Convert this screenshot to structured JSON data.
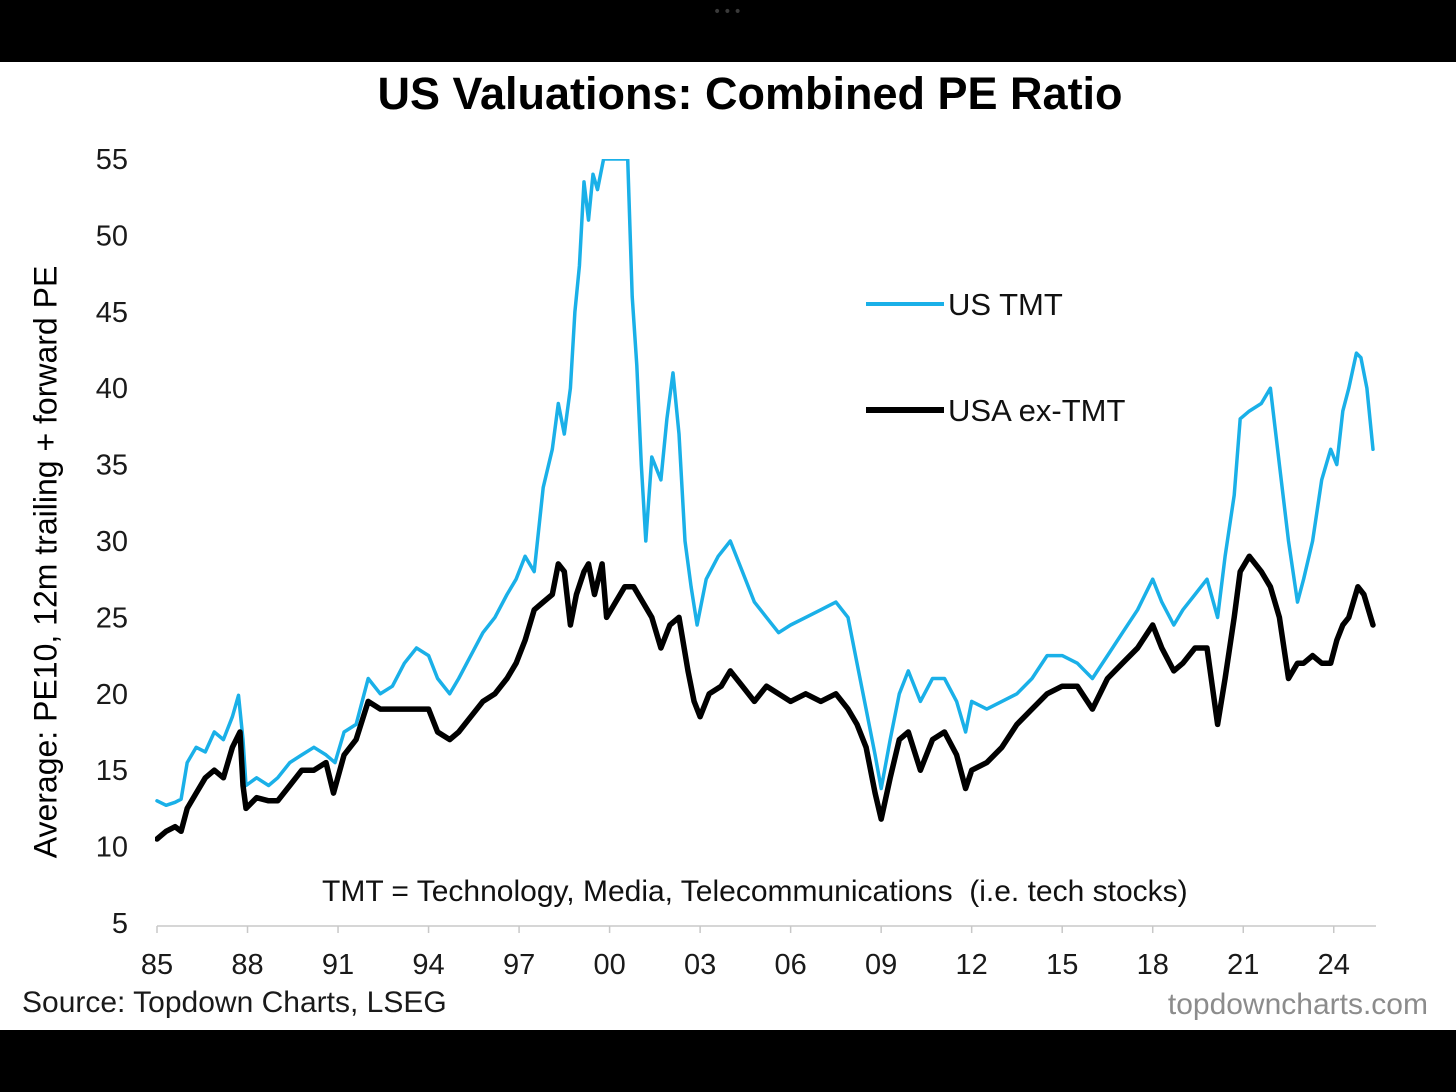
{
  "window": {
    "top_bar_dots": "•••"
  },
  "chart_data": {
    "type": "line",
    "title": "US Valuations: Combined PE Ratio",
    "ylabel": "Average: PE10, 12m trailing + forward PE",
    "xlabel": "",
    "ylim": [
      5,
      55
    ],
    "xlim": [
      1985,
      2025.5
    ],
    "yticks": [
      5,
      10,
      15,
      20,
      25,
      30,
      35,
      40,
      45,
      50,
      55
    ],
    "xticks": [
      {
        "value": 1985,
        "label": "85"
      },
      {
        "value": 1988,
        "label": "88"
      },
      {
        "value": 1991,
        "label": "91"
      },
      {
        "value": 1994,
        "label": "94"
      },
      {
        "value": 1997,
        "label": "97"
      },
      {
        "value": 2000,
        "label": "00"
      },
      {
        "value": 2003,
        "label": "03"
      },
      {
        "value": 2006,
        "label": "06"
      },
      {
        "value": 2009,
        "label": "09"
      },
      {
        "value": 2012,
        "label": "12"
      },
      {
        "value": 2015,
        "label": "15"
      },
      {
        "value": 2018,
        "label": "18"
      },
      {
        "value": 2021,
        "label": "21"
      },
      {
        "value": 2024,
        "label": "24"
      }
    ],
    "legend_position": "upper-right",
    "grid": false,
    "annotation": "TMT = Technology, Media, Telecommunications  (i.e. tech stocks)",
    "series": [
      {
        "name": "US TMT",
        "color": "#1ab0e8",
        "points": [
          [
            1985.0,
            13.0
          ],
          [
            1985.3,
            12.7
          ],
          [
            1985.6,
            12.9
          ],
          [
            1985.8,
            13.1
          ],
          [
            1986.0,
            15.5
          ],
          [
            1986.3,
            16.5
          ],
          [
            1986.6,
            16.2
          ],
          [
            1986.9,
            17.5
          ],
          [
            1987.2,
            17.0
          ],
          [
            1987.5,
            18.5
          ],
          [
            1987.7,
            19.9
          ],
          [
            1987.85,
            17.0
          ],
          [
            1987.95,
            14.0
          ],
          [
            1988.3,
            14.5
          ],
          [
            1988.7,
            14.0
          ],
          [
            1989.0,
            14.5
          ],
          [
            1989.4,
            15.5
          ],
          [
            1989.8,
            16.0
          ],
          [
            1990.2,
            16.5
          ],
          [
            1990.6,
            16.0
          ],
          [
            1990.9,
            15.5
          ],
          [
            1991.2,
            17.5
          ],
          [
            1991.6,
            18.0
          ],
          [
            1992.0,
            21.0
          ],
          [
            1992.4,
            20.0
          ],
          [
            1992.8,
            20.5
          ],
          [
            1993.2,
            22.0
          ],
          [
            1993.6,
            23.0
          ],
          [
            1994.0,
            22.5
          ],
          [
            1994.3,
            21.0
          ],
          [
            1994.7,
            20.0
          ],
          [
            1995.0,
            21.0
          ],
          [
            1995.4,
            22.5
          ],
          [
            1995.8,
            24.0
          ],
          [
            1996.2,
            25.0
          ],
          [
            1996.6,
            26.5
          ],
          [
            1996.9,
            27.5
          ],
          [
            1997.2,
            29.0
          ],
          [
            1997.5,
            28.0
          ],
          [
            1997.8,
            33.5
          ],
          [
            1998.1,
            36.0
          ],
          [
            1998.3,
            39.0
          ],
          [
            1998.5,
            37.0
          ],
          [
            1998.7,
            40.0
          ],
          [
            1998.85,
            45.0
          ],
          [
            1999.0,
            48.0
          ],
          [
            1999.15,
            53.5
          ],
          [
            1999.3,
            51.0
          ],
          [
            1999.45,
            54.0
          ],
          [
            1999.6,
            53.0
          ],
          [
            1999.8,
            55.0
          ],
          [
            2000.0,
            55.0
          ],
          [
            2000.6,
            55.0
          ],
          [
            2000.75,
            46.0
          ],
          [
            2000.9,
            41.5
          ],
          [
            2001.05,
            35.0
          ],
          [
            2001.2,
            30.0
          ],
          [
            2001.4,
            35.5
          ],
          [
            2001.7,
            34.0
          ],
          [
            2001.9,
            38.0
          ],
          [
            2002.1,
            41.0
          ],
          [
            2002.3,
            37.0
          ],
          [
            2002.5,
            30.0
          ],
          [
            2002.7,
            27.0
          ],
          [
            2002.9,
            24.5
          ],
          [
            2003.2,
            27.5
          ],
          [
            2003.6,
            29.0
          ],
          [
            2004.0,
            30.0
          ],
          [
            2004.4,
            28.0
          ],
          [
            2004.8,
            26.0
          ],
          [
            2005.2,
            25.0
          ],
          [
            2005.6,
            24.0
          ],
          [
            2006.0,
            24.5
          ],
          [
            2006.5,
            25.0
          ],
          [
            2007.0,
            25.5
          ],
          [
            2007.5,
            26.0
          ],
          [
            2007.9,
            25.0
          ],
          [
            2008.2,
            22.0
          ],
          [
            2008.5,
            19.0
          ],
          [
            2008.8,
            16.0
          ],
          [
            2009.0,
            13.8
          ],
          [
            2009.3,
            17.0
          ],
          [
            2009.6,
            20.0
          ],
          [
            2009.9,
            21.5
          ],
          [
            2010.3,
            19.5
          ],
          [
            2010.7,
            21.0
          ],
          [
            2011.1,
            21.0
          ],
          [
            2011.5,
            19.5
          ],
          [
            2011.8,
            17.5
          ],
          [
            2012.0,
            19.5
          ],
          [
            2012.5,
            19.0
          ],
          [
            2013.0,
            19.5
          ],
          [
            2013.5,
            20.0
          ],
          [
            2014.0,
            21.0
          ],
          [
            2014.5,
            22.5
          ],
          [
            2015.0,
            22.5
          ],
          [
            2015.5,
            22.0
          ],
          [
            2016.0,
            21.0
          ],
          [
            2016.5,
            22.5
          ],
          [
            2017.0,
            24.0
          ],
          [
            2017.5,
            25.5
          ],
          [
            2018.0,
            27.5
          ],
          [
            2018.3,
            26.0
          ],
          [
            2018.7,
            24.5
          ],
          [
            2019.0,
            25.5
          ],
          [
            2019.4,
            26.5
          ],
          [
            2019.8,
            27.5
          ],
          [
            2020.15,
            25.0
          ],
          [
            2020.4,
            29.0
          ],
          [
            2020.7,
            33.0
          ],
          [
            2020.9,
            38.0
          ],
          [
            2021.2,
            38.5
          ],
          [
            2021.6,
            39.0
          ],
          [
            2021.9,
            40.0
          ],
          [
            2022.2,
            35.0
          ],
          [
            2022.5,
            30.0
          ],
          [
            2022.8,
            26.0
          ],
          [
            2023.0,
            27.5
          ],
          [
            2023.3,
            30.0
          ],
          [
            2023.6,
            34.0
          ],
          [
            2023.9,
            36.0
          ],
          [
            2024.1,
            35.0
          ],
          [
            2024.3,
            38.5
          ],
          [
            2024.5,
            40.0
          ],
          [
            2024.75,
            42.3
          ],
          [
            2024.9,
            42.0
          ],
          [
            2025.1,
            40.0
          ],
          [
            2025.3,
            36.0
          ]
        ]
      },
      {
        "name": "USA ex-TMT",
        "color": "#000000",
        "points": [
          [
            1985.0,
            10.5
          ],
          [
            1985.3,
            11.0
          ],
          [
            1985.6,
            11.3
          ],
          [
            1985.8,
            11.0
          ],
          [
            1986.0,
            12.5
          ],
          [
            1986.3,
            13.5
          ],
          [
            1986.6,
            14.5
          ],
          [
            1986.9,
            15.0
          ],
          [
            1987.2,
            14.5
          ],
          [
            1987.5,
            16.5
          ],
          [
            1987.75,
            17.5
          ],
          [
            1987.85,
            14.0
          ],
          [
            1987.95,
            12.5
          ],
          [
            1988.3,
            13.2
          ],
          [
            1988.7,
            13.0
          ],
          [
            1989.0,
            13.0
          ],
          [
            1989.4,
            14.0
          ],
          [
            1989.8,
            15.0
          ],
          [
            1990.2,
            15.0
          ],
          [
            1990.6,
            15.5
          ],
          [
            1990.85,
            13.5
          ],
          [
            1991.2,
            16.0
          ],
          [
            1991.6,
            17.0
          ],
          [
            1992.0,
            19.5
          ],
          [
            1992.4,
            19.0
          ],
          [
            1992.8,
            19.0
          ],
          [
            1993.2,
            19.0
          ],
          [
            1993.6,
            19.0
          ],
          [
            1994.0,
            19.0
          ],
          [
            1994.3,
            17.5
          ],
          [
            1994.7,
            17.0
          ],
          [
            1995.0,
            17.5
          ],
          [
            1995.4,
            18.5
          ],
          [
            1995.8,
            19.5
          ],
          [
            1996.2,
            20.0
          ],
          [
            1996.6,
            21.0
          ],
          [
            1996.9,
            22.0
          ],
          [
            1997.2,
            23.5
          ],
          [
            1997.5,
            25.5
          ],
          [
            1997.8,
            26.0
          ],
          [
            1998.1,
            26.5
          ],
          [
            1998.3,
            28.5
          ],
          [
            1998.5,
            28.0
          ],
          [
            1998.7,
            24.5
          ],
          [
            1998.9,
            26.5
          ],
          [
            1999.15,
            28.0
          ],
          [
            1999.3,
            28.5
          ],
          [
            1999.5,
            26.5
          ],
          [
            1999.75,
            28.5
          ],
          [
            1999.9,
            25.0
          ],
          [
            2000.2,
            26.0
          ],
          [
            2000.5,
            27.0
          ],
          [
            2000.8,
            27.0
          ],
          [
            2001.1,
            26.0
          ],
          [
            2001.4,
            25.0
          ],
          [
            2001.7,
            23.0
          ],
          [
            2002.0,
            24.5
          ],
          [
            2002.3,
            25.0
          ],
          [
            2002.6,
            21.5
          ],
          [
            2002.8,
            19.5
          ],
          [
            2003.0,
            18.5
          ],
          [
            2003.3,
            20.0
          ],
          [
            2003.7,
            20.5
          ],
          [
            2004.0,
            21.5
          ],
          [
            2004.4,
            20.5
          ],
          [
            2004.8,
            19.5
          ],
          [
            2005.2,
            20.5
          ],
          [
            2005.6,
            20.0
          ],
          [
            2006.0,
            19.5
          ],
          [
            2006.5,
            20.0
          ],
          [
            2007.0,
            19.5
          ],
          [
            2007.5,
            20.0
          ],
          [
            2007.9,
            19.0
          ],
          [
            2008.2,
            18.0
          ],
          [
            2008.5,
            16.5
          ],
          [
            2008.8,
            13.5
          ],
          [
            2009.0,
            11.8
          ],
          [
            2009.3,
            14.5
          ],
          [
            2009.6,
            17.0
          ],
          [
            2009.9,
            17.5
          ],
          [
            2010.3,
            15.0
          ],
          [
            2010.7,
            17.0
          ],
          [
            2011.1,
            17.5
          ],
          [
            2011.5,
            16.0
          ],
          [
            2011.8,
            13.8
          ],
          [
            2012.0,
            15.0
          ],
          [
            2012.5,
            15.5
          ],
          [
            2013.0,
            16.5
          ],
          [
            2013.5,
            18.0
          ],
          [
            2014.0,
            19.0
          ],
          [
            2014.5,
            20.0
          ],
          [
            2015.0,
            20.5
          ],
          [
            2015.5,
            20.5
          ],
          [
            2016.0,
            19.0
          ],
          [
            2016.5,
            21.0
          ],
          [
            2017.0,
            22.0
          ],
          [
            2017.5,
            23.0
          ],
          [
            2018.0,
            24.5
          ],
          [
            2018.3,
            23.0
          ],
          [
            2018.7,
            21.5
          ],
          [
            2019.0,
            22.0
          ],
          [
            2019.4,
            23.0
          ],
          [
            2019.8,
            23.0
          ],
          [
            2020.15,
            18.0
          ],
          [
            2020.4,
            21.0
          ],
          [
            2020.7,
            25.0
          ],
          [
            2020.9,
            28.0
          ],
          [
            2021.2,
            29.0
          ],
          [
            2021.6,
            28.0
          ],
          [
            2021.9,
            27.0
          ],
          [
            2022.2,
            25.0
          ],
          [
            2022.5,
            21.0
          ],
          [
            2022.8,
            22.0
          ],
          [
            2023.0,
            22.0
          ],
          [
            2023.3,
            22.5
          ],
          [
            2023.6,
            22.0
          ],
          [
            2023.9,
            22.0
          ],
          [
            2024.1,
            23.5
          ],
          [
            2024.3,
            24.5
          ],
          [
            2024.5,
            25.0
          ],
          [
            2024.8,
            27.0
          ],
          [
            2025.0,
            26.5
          ],
          [
            2025.3,
            24.5
          ]
        ]
      }
    ]
  },
  "footer": {
    "source": "Source: Topdown Charts, LSEG",
    "watermark": "topdowncharts.com"
  }
}
